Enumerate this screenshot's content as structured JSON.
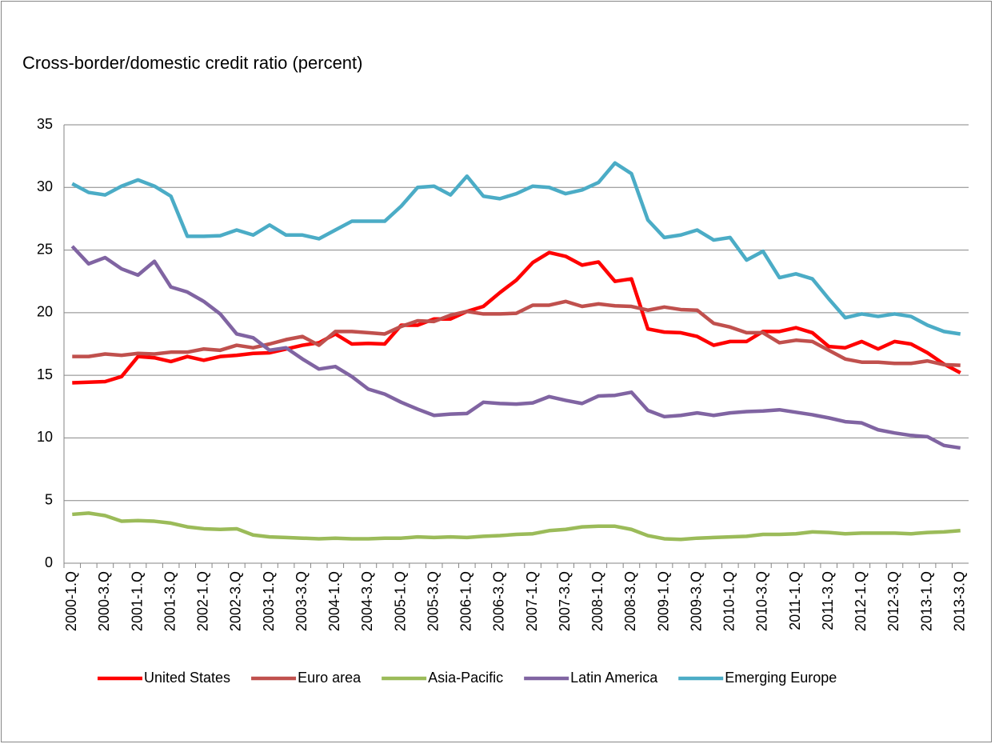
{
  "chart_data": {
    "type": "line",
    "title": "Cross-border/domestic credit ratio (percent)",
    "categories": [
      "2000-1.Q",
      null,
      "2000-3.Q",
      null,
      "2001-1.Q",
      null,
      "2001-3.Q",
      null,
      "2002-1.Q",
      null,
      "2002-3.Q",
      null,
      "2003-1.Q",
      null,
      "2003-3.Q",
      null,
      "2004-1.Q",
      null,
      "2004-3.Q",
      null,
      "2005-1.Q",
      null,
      "2005-3.Q",
      null,
      "2006-1.Q",
      null,
      "2006-3.Q",
      null,
      "2007-1.Q",
      null,
      "2007-3.Q",
      null,
      "2008-1.Q",
      null,
      "2008-3.Q",
      null,
      "2009-1.Q",
      null,
      "2009-3.Q",
      null,
      "2010-1.Q",
      null,
      "2010-3.Q",
      null,
      "2011-1.Q",
      null,
      "2011-3.Q",
      null,
      "2012-1.Q",
      null,
      "2012-3.Q",
      null,
      "2013-1.Q",
      null,
      "2013-3.Q"
    ],
    "series": [
      {
        "name": "United States",
        "color": "#ff0000",
        "values": [
          14.4,
          14.45,
          14.5,
          14.9,
          16.5,
          16.4,
          16.1,
          16.5,
          16.2,
          16.5,
          16.6,
          16.75,
          16.8,
          17.1,
          17.4,
          17.6,
          18.3,
          17.5,
          17.55,
          17.5,
          19.0,
          19.0,
          19.5,
          19.5,
          20.1,
          20.5,
          21.6,
          22.6,
          24.0,
          24.8,
          24.5,
          23.8,
          24.05,
          22.5,
          22.7,
          18.7,
          18.45,
          18.4,
          18.1,
          17.4,
          17.7,
          17.7,
          18.5,
          18.5,
          18.8,
          18.4,
          17.3,
          17.2,
          17.7,
          17.1,
          17.7,
          17.5,
          16.8,
          15.9,
          15.2
        ]
      },
      {
        "name": "Euro area",
        "color": "#c0504d",
        "values": [
          16.5,
          16.5,
          16.7,
          16.6,
          16.75,
          16.7,
          16.85,
          16.85,
          17.1,
          17.0,
          17.4,
          17.2,
          17.5,
          17.85,
          18.1,
          17.4,
          18.5,
          18.5,
          18.4,
          18.3,
          18.9,
          19.35,
          19.3,
          19.8,
          20.1,
          19.9,
          19.9,
          19.95,
          20.6,
          20.6,
          20.9,
          20.5,
          20.7,
          20.55,
          20.5,
          20.2,
          20.45,
          20.25,
          20.2,
          19.15,
          18.85,
          18.4,
          18.4,
          17.6,
          17.8,
          17.7,
          17.0,
          16.3,
          16.05,
          16.05,
          15.95,
          15.95,
          16.15,
          15.85,
          15.8
        ]
      },
      {
        "name": "Asia-Pacific",
        "color": "#9bbb59",
        "values": [
          3.9,
          4.0,
          3.8,
          3.35,
          3.4,
          3.35,
          3.2,
          2.9,
          2.75,
          2.7,
          2.75,
          2.25,
          2.1,
          2.05,
          2.0,
          1.95,
          2.0,
          1.95,
          1.95,
          2.0,
          2.0,
          2.1,
          2.05,
          2.1,
          2.05,
          2.15,
          2.2,
          2.3,
          2.35,
          2.6,
          2.7,
          2.9,
          2.95,
          2.95,
          2.7,
          2.2,
          1.95,
          1.9,
          2.0,
          2.05,
          2.1,
          2.15,
          2.3,
          2.3,
          2.35,
          2.5,
          2.45,
          2.35,
          2.4,
          2.4,
          2.4,
          2.35,
          2.45,
          2.5,
          2.6
        ]
      },
      {
        "name": "Latin America",
        "color": "#8064a2",
        "values": [
          25.3,
          23.9,
          24.4,
          23.5,
          23.0,
          24.1,
          22.05,
          21.65,
          20.9,
          19.9,
          18.3,
          18.0,
          17.0,
          17.2,
          16.3,
          15.5,
          15.7,
          14.9,
          13.9,
          13.5,
          12.85,
          12.3,
          11.8,
          11.9,
          11.95,
          12.85,
          12.75,
          12.7,
          12.8,
          13.3,
          13.0,
          12.75,
          13.35,
          13.4,
          13.65,
          12.2,
          11.7,
          11.8,
          12.0,
          11.8,
          12.0,
          12.1,
          12.15,
          12.25,
          12.05,
          11.85,
          11.6,
          11.3,
          11.2,
          10.65,
          10.4,
          10.2,
          10.1,
          9.4,
          9.2
        ]
      },
      {
        "name": "Emerging Europe",
        "color": "#4bacc6",
        "values": [
          30.3,
          29.6,
          29.4,
          30.1,
          30.6,
          30.1,
          29.3,
          26.1,
          26.1,
          26.15,
          26.6,
          26.2,
          27.0,
          26.2,
          26.2,
          25.9,
          26.6,
          27.3,
          27.3,
          27.3,
          28.5,
          30.0,
          30.1,
          29.4,
          30.9,
          29.3,
          29.1,
          29.5,
          30.1,
          30.0,
          29.5,
          29.8,
          30.4,
          31.95,
          31.1,
          27.4,
          26.0,
          26.2,
          26.6,
          25.8,
          26.0,
          24.2,
          24.9,
          22.8,
          23.1,
          22.7,
          21.1,
          19.6,
          19.9,
          19.7,
          19.9,
          19.7,
          19.0,
          18.5,
          18.3
        ]
      }
    ],
    "ylim": [
      0,
      35
    ],
    "yticks": [
      0,
      5,
      10,
      15,
      20,
      25,
      30,
      35
    ],
    "grid": true,
    "legend": "bottom"
  }
}
